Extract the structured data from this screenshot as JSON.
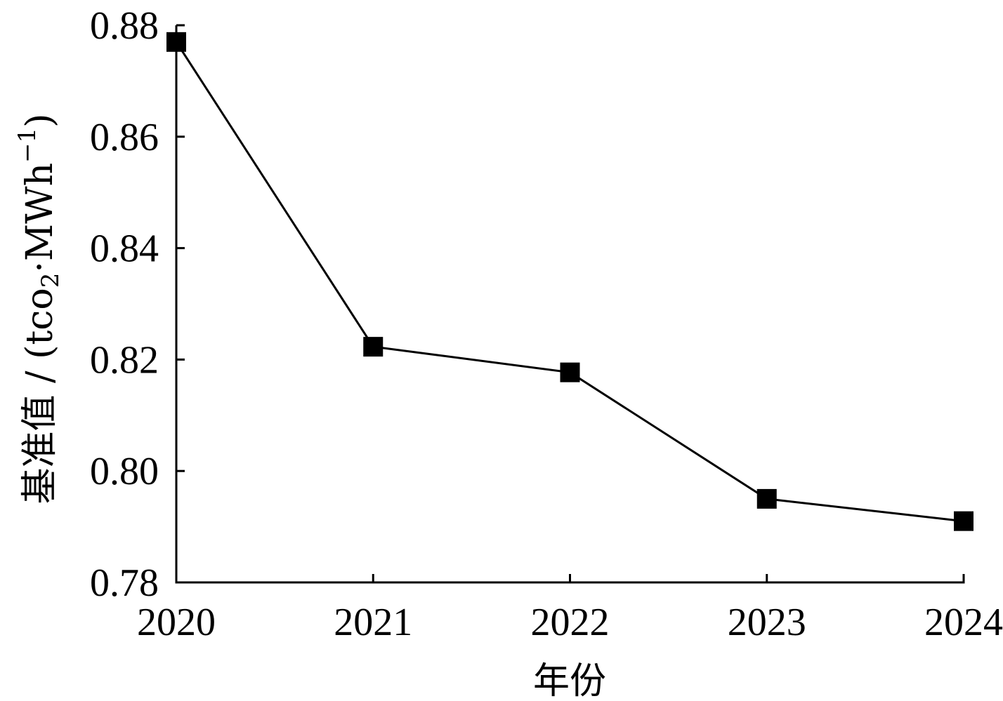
{
  "chart_data": {
    "type": "line",
    "title": "",
    "xlabel": "年份",
    "ylabel": {
      "prefix": "基准值 / (tco",
      "sub": "2",
      "middle": "·MWh",
      "sup": "−1",
      "suffix": ")"
    },
    "categories": [
      "2020",
      "2021",
      "2022",
      "2023",
      "2024"
    ],
    "series": [
      {
        "values": [
          0.877,
          0.8223,
          0.8177,
          0.795,
          0.791
        ]
      }
    ],
    "ylim": [
      0.78,
      0.88
    ],
    "yticks": [
      "0.78",
      "0.80",
      "0.82",
      "0.84",
      "0.86",
      "0.88"
    ],
    "grid": false,
    "legend": "none",
    "line_color": "#000000",
    "marker": "square"
  }
}
